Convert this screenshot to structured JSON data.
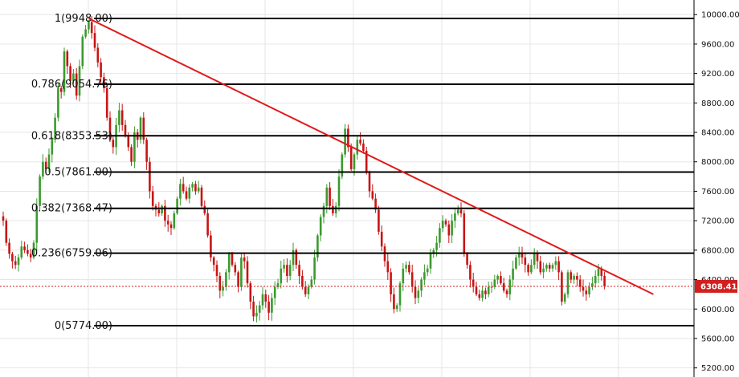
{
  "chart_data": {
    "type": "candlestick",
    "title": "",
    "xlabel": "",
    "ylabel": "",
    "ylim": [
      5150,
      10150
    ],
    "grid": true,
    "y_ticks": [
      10000,
      9600,
      9200,
      8800,
      8400,
      8000,
      7600,
      7200,
      6800,
      6400,
      6000,
      5600,
      5200
    ],
    "y_tick_labels": [
      "10000.00",
      "9600.00",
      "9200.00",
      "8800.00",
      "8400.00",
      "8000.00",
      "7600.00",
      "7200.00",
      "6800.00",
      "6400.00",
      "6000.00",
      "5600.00",
      "5200.00"
    ],
    "fib_levels": [
      {
        "label": "1(9948.00)",
        "value": 9948.0
      },
      {
        "label": "0.786(9054.76)",
        "value": 9054.76
      },
      {
        "label": "0.618(8353.53)",
        "value": 8353.53
      },
      {
        "label": "0.5(7861.00)",
        "value": 7861.0
      },
      {
        "label": "0.382(7368.47)",
        "value": 7368.47
      },
      {
        "label": "0.236(6759.06)",
        "value": 6759.06
      },
      {
        "label": "0(5774.00)",
        "value": 5774.0
      }
    ],
    "trendline": {
      "start": {
        "bar": 28,
        "price": 9948
      },
      "end": {
        "bar": 213,
        "price": 6200
      }
    },
    "current_price": {
      "value": 6308.41,
      "label": "6308.41"
    },
    "colors": {
      "up": "#3a9a2e",
      "down": "#c81414",
      "trendline": "#e01b1b",
      "fib": "#000000",
      "grid": "#e6e6e6",
      "price_tag": "#d21f1f"
    },
    "candles": {
      "count": 198,
      "close": [
        7200,
        6900,
        6750,
        6650,
        6600,
        6700,
        6850,
        6800,
        6750,
        6700,
        6900,
        7400,
        7800,
        8000,
        7900,
        8100,
        8300,
        8600,
        9000,
        8950,
        9500,
        9300,
        9100,
        9200,
        8900,
        9300,
        9700,
        9800,
        9900,
        9750,
        9550,
        9350,
        9150,
        9000,
        8600,
        8300,
        8200,
        8500,
        8700,
        8500,
        8350,
        8200,
        8000,
        8400,
        8300,
        8600,
        8300,
        8000,
        7600,
        7400,
        7350,
        7300,
        7400,
        7200,
        7150,
        7100,
        7300,
        7500,
        7700,
        7600,
        7500,
        7650,
        7700,
        7600,
        7650,
        7400,
        7300,
        7000,
        6700,
        6600,
        6450,
        6250,
        6300,
        6500,
        6750,
        6600,
        6500,
        6300,
        6700,
        6650,
        6350,
        6100,
        5900,
        5950,
        6050,
        6200,
        6100,
        5950,
        6150,
        6300,
        6350,
        6550,
        6600,
        6450,
        6600,
        6800,
        6600,
        6450,
        6300,
        6200,
        6300,
        6400,
        6700,
        7000,
        7250,
        7400,
        7650,
        7400,
        7300,
        7400,
        7800,
        8100,
        8450,
        8200,
        7900,
        8100,
        8300,
        8250,
        8150,
        7850,
        7600,
        7500,
        7350,
        7050,
        6850,
        6650,
        6500,
        6200,
        6000,
        6050,
        6350,
        6550,
        6600,
        6500,
        6300,
        6150,
        6250,
        6400,
        6500,
        6550,
        6750,
        6800,
        6900,
        7100,
        7200,
        7150,
        7000,
        7200,
        7300,
        7350,
        7300,
        6750,
        6600,
        6400,
        6300,
        6200,
        6150,
        6250,
        6200,
        6300,
        6300,
        6400,
        6450,
        6350,
        6250,
        6200,
        6400,
        6550,
        6700,
        6750,
        6700,
        6600,
        6500,
        6600,
        6750,
        6650,
        6500,
        6550,
        6600,
        6550,
        6600,
        6650,
        6500,
        6100,
        6200,
        6500,
        6400,
        6450,
        6400,
        6300,
        6250,
        6200,
        6300,
        6350,
        6450,
        6550,
        6450,
        6308
      ]
    }
  }
}
